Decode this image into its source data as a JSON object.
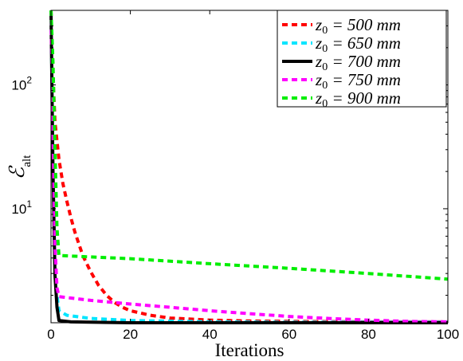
{
  "chart_data": {
    "type": "line",
    "title": "",
    "xlabel": "Iterations",
    "ylabel": "ℰalt",
    "ylabel_main": "ℰ",
    "ylabel_sub": "alt",
    "xlim": [
      0,
      100
    ],
    "ylim": [
      1.2,
      400
    ],
    "yscale": "log",
    "xticks": [
      "0",
      "20",
      "40",
      "60",
      "80",
      "100"
    ],
    "yticks": [
      {
        "value": 10,
        "base": "10",
        "exp": "1"
      },
      {
        "value": 100,
        "base": "10",
        "exp": "2"
      }
    ],
    "grid": false,
    "legend_position": "top-right",
    "series": [
      {
        "name": "z₀ = 500 mm",
        "legend_parts": {
          "base": "z",
          "sub": "0",
          "rest": " = 500 mm"
        },
        "color": "#ff0000",
        "dash": "dotted",
        "x": [
          0,
          0.5,
          1,
          2,
          3,
          4,
          5,
          6,
          8,
          10,
          12,
          14,
          16,
          18,
          20,
          25,
          30,
          40,
          50,
          60,
          80,
          100
        ],
        "y": [
          400,
          120,
          50,
          25,
          16,
          11.5,
          8.5,
          6.5,
          4.2,
          3.1,
          2.4,
          2.0,
          1.75,
          1.6,
          1.5,
          1.38,
          1.31,
          1.26,
          1.24,
          1.23,
          1.22,
          1.22
        ]
      },
      {
        "name": "z₀ = 650 mm",
        "legend_parts": {
          "base": "z",
          "sub": "0",
          "rest": " = 650 mm"
        },
        "color": "#00e5ff",
        "dash": "dotted",
        "x": [
          0,
          0.5,
          1,
          1.5,
          2,
          4,
          10,
          20,
          40,
          60,
          80,
          100
        ],
        "y": [
          400,
          30,
          5,
          2.0,
          1.5,
          1.38,
          1.3,
          1.25,
          1.22,
          1.21,
          1.21,
          1.21
        ]
      },
      {
        "name": "z₀ = 700 mm",
        "legend_parts": {
          "base": "z",
          "sub": "0",
          "rest": " = 700 mm"
        },
        "color": "#000000",
        "dash": "solid",
        "x": [
          0,
          0.5,
          1,
          1.5,
          2,
          5,
          20,
          50,
          100
        ],
        "y": [
          400,
          20,
          2.9,
          1.6,
          1.25,
          1.22,
          1.2,
          1.2,
          1.2
        ]
      },
      {
        "name": "z₀ = 750 mm",
        "legend_parts": {
          "base": "z",
          "sub": "0",
          "rest": " = 750 mm"
        },
        "color": "#ff00ff",
        "dash": "dotted",
        "x": [
          0,
          0.5,
          1,
          1.5,
          2,
          5,
          10,
          20,
          30,
          40,
          50,
          60,
          70,
          80,
          90,
          100
        ],
        "y": [
          400,
          40,
          5,
          2.3,
          1.95,
          1.9,
          1.82,
          1.7,
          1.6,
          1.5,
          1.42,
          1.35,
          1.3,
          1.26,
          1.23,
          1.22
        ]
      },
      {
        "name": "z₀ = 900 mm",
        "legend_parts": {
          "base": "z",
          "sub": "0",
          "rest": " = 900 mm"
        },
        "color": "#00ee00",
        "dash": "dotted",
        "x": [
          0,
          0.5,
          1,
          1.5,
          2,
          5,
          20,
          40,
          60,
          80,
          100
        ],
        "y": [
          400,
          150,
          30,
          7,
          4.2,
          4.15,
          3.95,
          3.6,
          3.3,
          3.0,
          2.7
        ]
      }
    ]
  }
}
